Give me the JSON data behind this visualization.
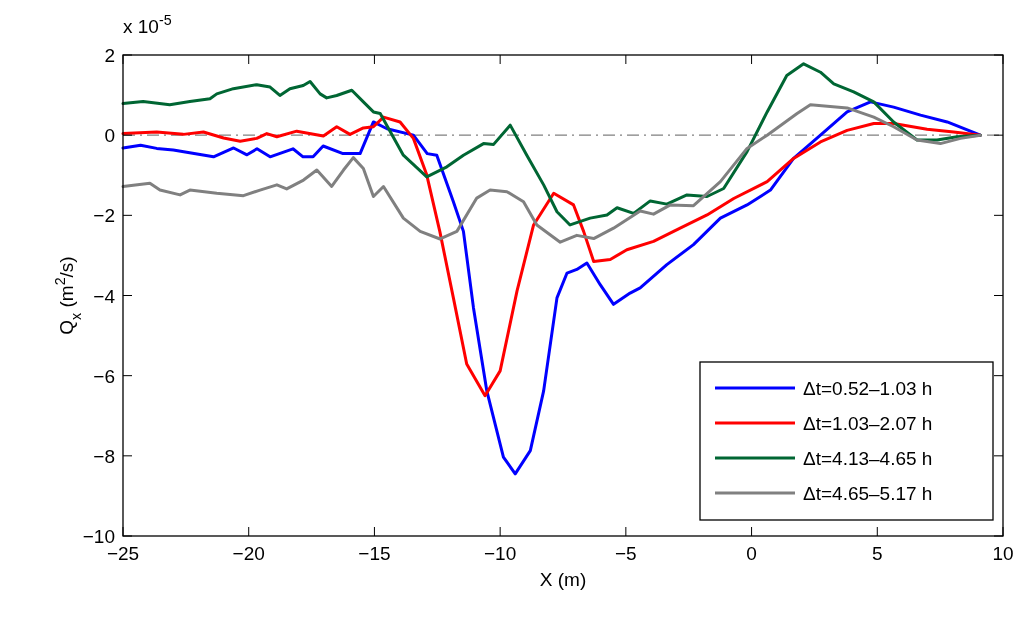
{
  "chart_data": {
    "type": "line",
    "xlabel": "X (m)",
    "ylabel": "Q$_{x}$ (m$^{2}$/s)",
    "annotations": [
      "x 10$^{-5}$"
    ],
    "xlim": [
      -25,
      10
    ],
    "xticks": [
      -25,
      -20,
      -15,
      -10,
      -5,
      0,
      5,
      10
    ],
    "ylim": [
      -10,
      2
    ],
    "yticks": [
      -10,
      -8,
      -6,
      -4,
      -2,
      0,
      2
    ],
    "legend": "bottom right",
    "grid": false,
    "line_style": "solid",
    "marker": "none",
    "ref_lines": [
      {
        "axis": "y",
        "value": 0,
        "label": null,
        "color": "#808080",
        "line_style": "dashed"
      }
    ],
    "series": [
      {
        "name": "Δt=0.52–1.03 h",
        "color": "#0000ff",
        "x": [
          -25,
          -24.3,
          -23.66,
          -23.0,
          -21.4,
          -20.6,
          -20.07,
          -19.67,
          -19.15,
          -18.24,
          -17.84,
          -17.44,
          -17.04,
          -16.25,
          -15.57,
          -15.04,
          -14.5,
          -13.45,
          -12.9,
          -12.52,
          -11.86,
          -11.46,
          -11.06,
          -10.53,
          -9.87,
          -9.4,
          -8.8,
          -8.27,
          -7.74,
          -7.34,
          -6.95,
          -6.55,
          -6.02,
          -5.49,
          -4.83,
          -4.43,
          -3.37,
          -2.31,
          -1.24,
          -0.18,
          0.75,
          1.67,
          2.74,
          3.8,
          4.73,
          5.65,
          6.72,
          7.78,
          9.1
        ],
        "values": [
          -0.32,
          -0.25,
          -0.33,
          -0.37,
          -0.54,
          -0.32,
          -0.49,
          -0.34,
          -0.54,
          -0.34,
          -0.54,
          -0.54,
          -0.27,
          -0.46,
          -0.46,
          0.33,
          0.16,
          0,
          -0.46,
          -0.5,
          -1.66,
          -2.4,
          -4.31,
          -6.38,
          -8.03,
          -8.45,
          -7.87,
          -6.38,
          -4.06,
          -3.44,
          -3.35,
          -3.19,
          -3.73,
          -4.22,
          -3.94,
          -3.81,
          -3.23,
          -2.73,
          -2.07,
          -1.74,
          -1.37,
          -0.58,
          0,
          0.58,
          0.83,
          0.7,
          0.5,
          0.33,
          0
        ]
      },
      {
        "name": "Δt=1.03–2.07 h",
        "color": "#ff0000",
        "x": [
          -25,
          -23.66,
          -22.6,
          -21.8,
          -21.0,
          -20.34,
          -19.68,
          -19.28,
          -18.88,
          -18.09,
          -17.03,
          -16.5,
          -15.97,
          -15.44,
          -15.04,
          -14.64,
          -13.98,
          -13.45,
          -12.92,
          -12.4,
          -11.86,
          -11.33,
          -10.6,
          -10.0,
          -9.33,
          -8.67,
          -7.87,
          -7.08,
          -6.68,
          -6.28,
          -5.62,
          -4.96,
          -3.9,
          -2.84,
          -1.77,
          -0.71,
          0.62,
          1.67,
          2.74,
          3.8,
          4.86,
          5.65,
          6.98,
          8.04,
          9.1
        ],
        "values": [
          0.04,
          0.08,
          0.02,
          0.08,
          -0.07,
          -0.15,
          -0.08,
          0.04,
          -0.04,
          0.1,
          -0.02,
          0.21,
          0.02,
          0.18,
          0.21,
          0.45,
          0.33,
          -0.08,
          -0.99,
          -2.4,
          -4.06,
          -5.71,
          -6.5,
          -5.88,
          -3.89,
          -2.24,
          -1.45,
          -1.74,
          -2.4,
          -3.15,
          -3.1,
          -2.86,
          -2.65,
          -2.32,
          -1.99,
          -1.58,
          -1.16,
          -0.58,
          -0.17,
          0.12,
          0.29,
          0.29,
          0.15,
          0.08,
          0
        ]
      },
      {
        "name": "Δt=4.13–4.65 h",
        "color": "#006633",
        "x": [
          -25,
          -24.2,
          -23.14,
          -22.34,
          -21.54,
          -21.27,
          -20.61,
          -19.68,
          -19.15,
          -18.76,
          -18.36,
          -17.83,
          -17.56,
          -17.16,
          -16.9,
          -16.5,
          -15.9,
          -15.44,
          -15.04,
          -14.77,
          -13.85,
          -12.92,
          -12.12,
          -11.46,
          -10.66,
          -10.26,
          -9.6,
          -8.94,
          -8.27,
          -7.74,
          -7.22,
          -6.42,
          -5.75,
          -5.35,
          -4.69,
          -4.03,
          -3.37,
          -2.57,
          -1.77,
          -1.11,
          -0.18,
          0.62,
          1.4,
          2.07,
          2.74,
          3.27,
          4.06,
          4.86,
          5.65,
          6.58,
          7.38,
          8.17,
          9.1
        ],
        "values": [
          0.79,
          0.84,
          0.76,
          0.84,
          0.91,
          1.03,
          1.16,
          1.26,
          1.2,
          0.99,
          1.16,
          1.24,
          1.34,
          1.03,
          0.93,
          0.99,
          1.12,
          0.83,
          0.58,
          0.54,
          -0.5,
          -1.04,
          -0.79,
          -0.5,
          -0.21,
          -0.23,
          0.25,
          -0.5,
          -1.24,
          -1.91,
          -2.24,
          -2.07,
          -1.99,
          -1.81,
          -1.95,
          -1.64,
          -1.72,
          -1.49,
          -1.53,
          -1.33,
          -0.41,
          0.58,
          1.49,
          1.78,
          1.57,
          1.28,
          1.08,
          0.83,
          0.33,
          -0.12,
          -0.12,
          -0.04,
          0
        ]
      },
      {
        "name": "Δt=4.65–5.17 h",
        "color": "#808080",
        "x": [
          -25,
          -23.93,
          -23.53,
          -22.73,
          -22.34,
          -21.27,
          -20.21,
          -19.55,
          -18.88,
          -18.49,
          -17.82,
          -17.29,
          -16.7,
          -16.23,
          -15.84,
          -15.44,
          -15.04,
          -14.64,
          -13.85,
          -13.18,
          -12.39,
          -11.72,
          -10.93,
          -10.4,
          -9.73,
          -9.07,
          -8.54,
          -7.61,
          -6.95,
          -6.28,
          -5.49,
          -4.43,
          -3.9,
          -3.23,
          -2.31,
          -1.24,
          -0.18,
          0.62,
          1.81,
          2.34,
          3.8,
          4.86,
          5.65,
          6.58,
          7.51,
          8.31,
          9.1
        ],
        "values": [
          -1.28,
          -1.2,
          -1.37,
          -1.49,
          -1.37,
          -1.45,
          -1.51,
          -1.37,
          -1.24,
          -1.34,
          -1.12,
          -0.87,
          -1.28,
          -0.87,
          -0.56,
          -0.83,
          -1.53,
          -1.28,
          -2.07,
          -2.4,
          -2.59,
          -2.4,
          -1.57,
          -1.37,
          -1.41,
          -1.66,
          -2.24,
          -2.67,
          -2.5,
          -2.58,
          -2.32,
          -1.89,
          -1.97,
          -1.74,
          -1.76,
          -1.16,
          -0.33,
          0,
          0.54,
          0.76,
          0.68,
          0.45,
          0.21,
          -0.12,
          -0.21,
          -0.08,
          0
        ]
      }
    ]
  }
}
